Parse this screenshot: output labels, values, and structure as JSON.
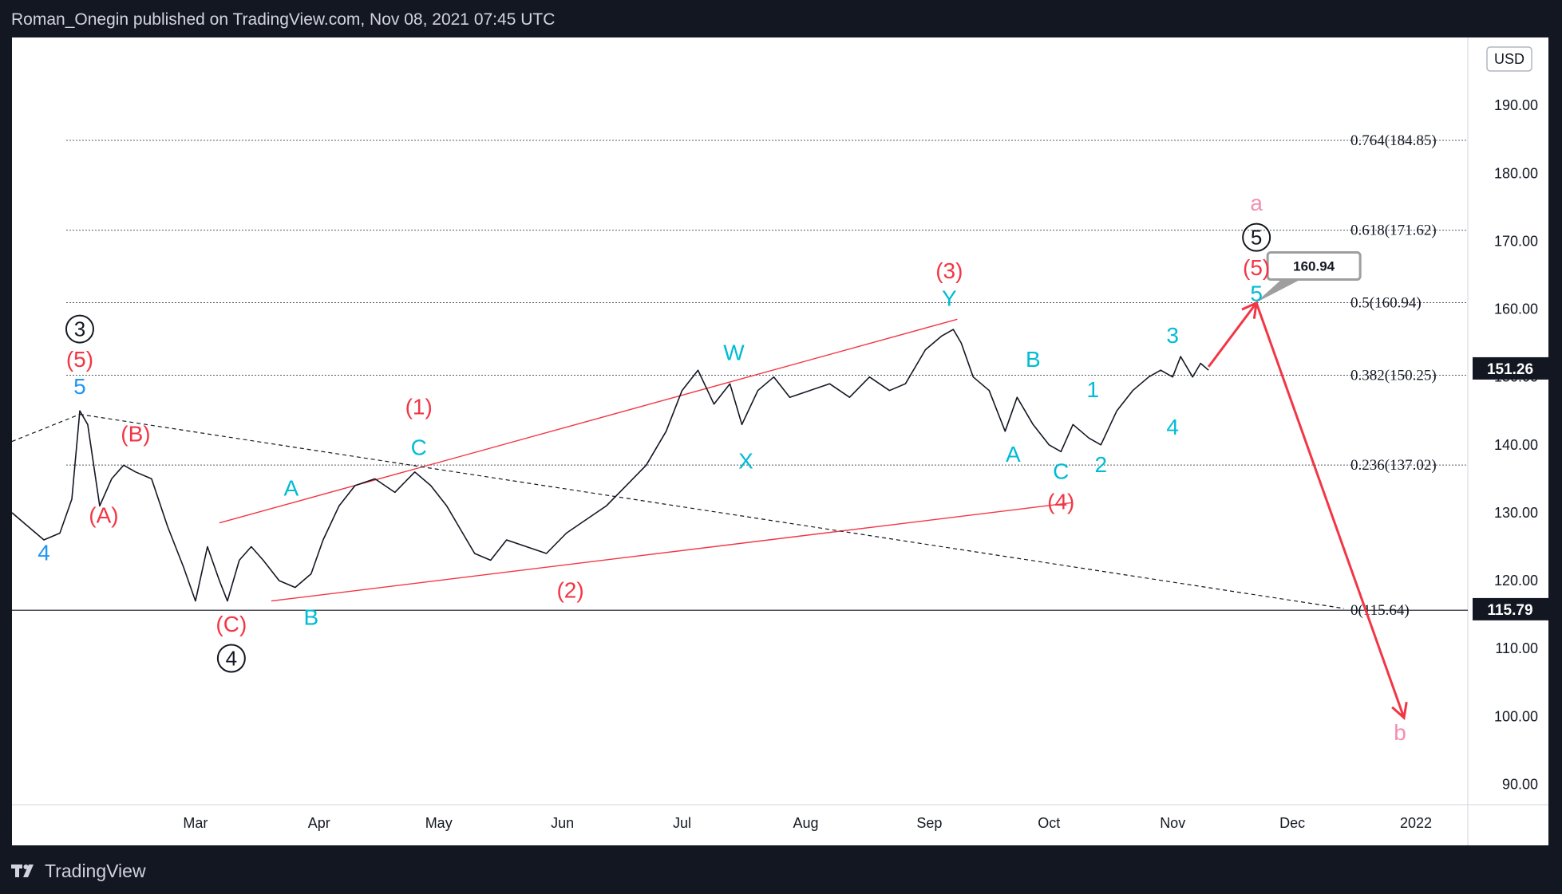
{
  "header": {
    "text": "Roman_Onegin published on TradingView.com, Nov 08, 2021 07:45 UTC"
  },
  "footer": {
    "brand": "TradingView",
    "logo_icon": "tradingview-logo-icon"
  },
  "colors": {
    "background": "#131722",
    "chart_bg": "#ffffff",
    "price_line": "#131722",
    "wave_red": "#f23645",
    "wave_teal": "#00bcd4",
    "wave_blue": "#2196f3",
    "wave_pink": "#f48fb1",
    "trend_red": "#f23645"
  },
  "chart_data": {
    "type": "line",
    "currency": "USD",
    "ylim": [
      87,
      200
    ],
    "y_ticks": [
      "90.00",
      "100.00",
      "110.00",
      "120.00",
      "130.00",
      "140.00",
      "150.00",
      "160.00",
      "170.00",
      "180.00",
      "190.00"
    ],
    "y_tick_values": [
      90,
      100,
      110,
      120,
      130,
      140,
      150,
      160,
      170,
      180,
      190
    ],
    "x_range": [
      "2021-01-14",
      "2022-01-14"
    ],
    "x_ticks": [
      {
        "label": "Mar",
        "date": "2021-03-01"
      },
      {
        "label": "Apr",
        "date": "2021-04-01"
      },
      {
        "label": "May",
        "date": "2021-05-01"
      },
      {
        "label": "Jun",
        "date": "2021-06-01"
      },
      {
        "label": "Jul",
        "date": "2021-07-01"
      },
      {
        "label": "Aug",
        "date": "2021-08-01"
      },
      {
        "label": "Sep",
        "date": "2021-09-01"
      },
      {
        "label": "Oct",
        "date": "2021-10-01"
      },
      {
        "label": "Nov",
        "date": "2021-11-01"
      },
      {
        "label": "Dec",
        "date": "2021-12-01"
      },
      {
        "label": "2022",
        "date": "2022-01-01"
      }
    ],
    "series": [
      {
        "name": "",
        "x": [
          "2021-01-14",
          "2021-01-18",
          "2021-01-22",
          "2021-01-26",
          "2021-01-29",
          "2021-01-31",
          "2021-02-02",
          "2021-02-05",
          "2021-02-08",
          "2021-02-11",
          "2021-02-14",
          "2021-02-18",
          "2021-02-22",
          "2021-02-26",
          "2021-03-01",
          "2021-03-04",
          "2021-03-07",
          "2021-03-09",
          "2021-03-12",
          "2021-03-15",
          "2021-03-18",
          "2021-03-22",
          "2021-03-26",
          "2021-03-30",
          "2021-04-02",
          "2021-04-06",
          "2021-04-10",
          "2021-04-15",
          "2021-04-20",
          "2021-04-25",
          "2021-04-29",
          "2021-05-03",
          "2021-05-06",
          "2021-05-10",
          "2021-05-14",
          "2021-05-18",
          "2021-05-23",
          "2021-05-28",
          "2021-06-02",
          "2021-06-07",
          "2021-06-12",
          "2021-06-17",
          "2021-06-22",
          "2021-06-27",
          "2021-07-01",
          "2021-07-05",
          "2021-07-09",
          "2021-07-13",
          "2021-07-16",
          "2021-07-20",
          "2021-07-24",
          "2021-07-28",
          "2021-08-02",
          "2021-08-07",
          "2021-08-12",
          "2021-08-17",
          "2021-08-22",
          "2021-08-26",
          "2021-08-31",
          "2021-09-04",
          "2021-09-07",
          "2021-09-09",
          "2021-09-12",
          "2021-09-16",
          "2021-09-20",
          "2021-09-23",
          "2021-09-27",
          "2021-10-01",
          "2021-10-04",
          "2021-10-07",
          "2021-10-11",
          "2021-10-14",
          "2021-10-18",
          "2021-10-22",
          "2021-10-26",
          "2021-10-29",
          "2021-11-01",
          "2021-11-03",
          "2021-11-06",
          "2021-11-08",
          "2021-11-10"
        ],
        "values": [
          130,
          128,
          126,
          127,
          132,
          145,
          143,
          131,
          135,
          137,
          136,
          135,
          128,
          122,
          117,
          125,
          120,
          117,
          123,
          125,
          123,
          120,
          119,
          121,
          126,
          131,
          134,
          135,
          133,
          136,
          134,
          131,
          128,
          124,
          123,
          126,
          125,
          124,
          127,
          129,
          131,
          134,
          137,
          142,
          148,
          151,
          146,
          149,
          143,
          148,
          150,
          147,
          148,
          149,
          147,
          150,
          148,
          149,
          154,
          156,
          157,
          155,
          150,
          148,
          142,
          147,
          143,
          140,
          139,
          143,
          141,
          140,
          145,
          148,
          150,
          151,
          150,
          153,
          150,
          152,
          151
        ]
      }
    ],
    "last_price": "151.26",
    "low_price": "115.79",
    "fib_levels": [
      {
        "label": "0.764(184.85)",
        "value": 184.85
      },
      {
        "label": "0.618(171.62)",
        "value": 171.62
      },
      {
        "label": "0.5(160.94)",
        "value": 160.94
      },
      {
        "label": "0.382(150.25)",
        "value": 150.25
      },
      {
        "label": "0.236(137.02)",
        "value": 137.02
      },
      {
        "label": "0(115.64)",
        "value": 115.64
      }
    ],
    "target_callout": "160.94",
    "wave_labels": [
      {
        "text": "4",
        "date": "2021-01-22",
        "price": 123,
        "color": "#2196f3",
        "size": 28
      },
      {
        "text": "5",
        "date": "2021-01-31",
        "price": 147.5,
        "color": "#2196f3",
        "size": 28
      },
      {
        "text": "(5)",
        "date": "2021-01-31",
        "price": 151.5,
        "color": "#f23645",
        "size": 28
      },
      {
        "text": "3",
        "date": "2021-01-31",
        "price": 156,
        "color": "#131722",
        "size": 26,
        "circle": true
      },
      {
        "text": "(A)",
        "date": "2021-02-06",
        "price": 128.5,
        "color": "#f23645",
        "size": 28
      },
      {
        "text": "(B)",
        "date": "2021-02-14",
        "price": 140.5,
        "color": "#f23645",
        "size": 28
      },
      {
        "text": "(C)",
        "date": "2021-03-10",
        "price": 112.5,
        "color": "#f23645",
        "size": 28
      },
      {
        "text": "4",
        "date": "2021-03-10",
        "price": 107.5,
        "color": "#131722",
        "size": 26,
        "circle": true
      },
      {
        "text": "A",
        "date": "2021-03-25",
        "price": 132.5,
        "color": "#00bcd4",
        "size": 28
      },
      {
        "text": "B",
        "date": "2021-03-30",
        "price": 113.5,
        "color": "#00bcd4",
        "size": 28
      },
      {
        "text": "(1)",
        "date": "2021-04-26",
        "price": 144.5,
        "color": "#f23645",
        "size": 28
      },
      {
        "text": "C",
        "date": "2021-04-26",
        "price": 138.5,
        "color": "#00bcd4",
        "size": 28
      },
      {
        "text": "(2)",
        "date": "2021-06-03",
        "price": 117.5,
        "color": "#f23645",
        "size": 28
      },
      {
        "text": "W",
        "date": "2021-07-14",
        "price": 152.5,
        "color": "#00bcd4",
        "size": 28
      },
      {
        "text": "X",
        "date": "2021-07-17",
        "price": 136.5,
        "color": "#00bcd4",
        "size": 28
      },
      {
        "text": "(3)",
        "date": "2021-09-06",
        "price": 164.5,
        "color": "#f23645",
        "size": 28
      },
      {
        "text": "Y",
        "date": "2021-09-06",
        "price": 160.5,
        "color": "#00bcd4",
        "size": 28
      },
      {
        "text": "A",
        "date": "2021-09-22",
        "price": 137.5,
        "color": "#00bcd4",
        "size": 28
      },
      {
        "text": "B",
        "date": "2021-09-27",
        "price": 151.5,
        "color": "#00bcd4",
        "size": 28
      },
      {
        "text": "C",
        "date": "2021-10-04",
        "price": 135,
        "color": "#00bcd4",
        "size": 28
      },
      {
        "text": "(4)",
        "date": "2021-10-04",
        "price": 130.5,
        "color": "#f23645",
        "size": 28
      },
      {
        "text": "1",
        "date": "2021-10-12",
        "price": 147,
        "color": "#00bcd4",
        "size": 28
      },
      {
        "text": "2",
        "date": "2021-10-14",
        "price": 136,
        "color": "#00bcd4",
        "size": 28
      },
      {
        "text": "3",
        "date": "2021-11-01",
        "price": 155,
        "color": "#00bcd4",
        "size": 28
      },
      {
        "text": "4",
        "date": "2021-11-01",
        "price": 141.5,
        "color": "#00bcd4",
        "size": 28
      },
      {
        "text": "a",
        "date": "2021-11-22",
        "price": 174.5,
        "color": "#f48fb1",
        "size": 28
      },
      {
        "text": "5",
        "date": "2021-11-22",
        "price": 169.5,
        "color": "#131722",
        "size": 26,
        "circle": true
      },
      {
        "text": "(5)",
        "date": "2021-11-22",
        "price": 165,
        "color": "#f23645",
        "size": 28
      },
      {
        "text": "5",
        "date": "2021-11-22",
        "price": 161.2,
        "color": "#00bcd4",
        "size": 28
      },
      {
        "text": "b",
        "date": "2021-12-28",
        "price": 96.5,
        "color": "#f48fb1",
        "size": 28
      }
    ],
    "trend_lines": [
      {
        "from": [
          "2021-03-07",
          128.5
        ],
        "to": [
          "2021-09-08",
          158.5
        ],
        "color": "#f23645",
        "dashed": false
      },
      {
        "from": [
          "2021-03-20",
          117
        ],
        "to": [
          "2021-10-07",
          131.5
        ],
        "color": "#f23645",
        "dashed": false
      },
      {
        "from": [
          "2021-01-14",
          140.5
        ],
        "to": [
          "2021-01-31",
          144.5
        ],
        "color": "#131722",
        "dashed": true
      },
      {
        "from": [
          "2021-01-31",
          144.5
        ],
        "to": [
          "2021-12-14",
          115.9
        ],
        "color": "#131722",
        "dashed": true
      }
    ],
    "projection_arrows": [
      {
        "from": [
          "2021-11-10",
          151.5
        ],
        "to": [
          "2021-11-22",
          160.9
        ],
        "color": "#f23645"
      },
      {
        "from": [
          "2021-11-22",
          160.9
        ],
        "to": [
          "2021-12-29",
          99.8
        ],
        "color": "#f23645"
      }
    ],
    "grid": false
  }
}
